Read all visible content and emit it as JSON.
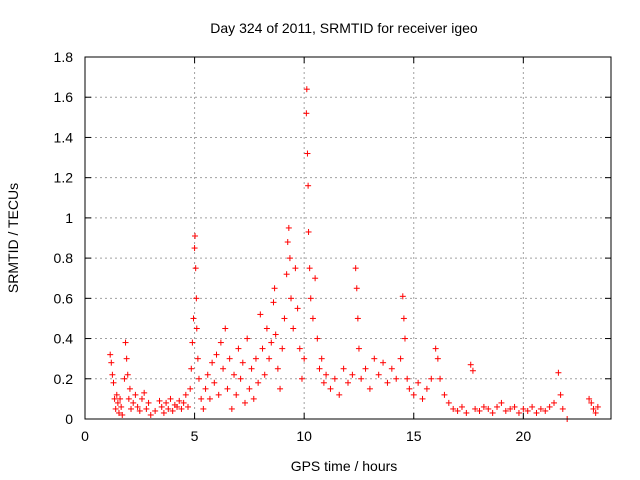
{
  "chart_data": {
    "type": "scatter",
    "title": "Day 324 of 2011, SRMTID for receiver igeo",
    "xlabel": "GPS time / hours",
    "ylabel": "SRMTID / TECUs",
    "xlim": [
      0,
      24
    ],
    "ylim": [
      0,
      1.8
    ],
    "x_ticks": [
      0,
      5,
      10,
      15,
      20
    ],
    "x_tick_labels": [
      "0",
      "5",
      "10",
      "15",
      "20"
    ],
    "y_ticks": [
      0,
      0.2,
      0.4,
      0.6,
      0.8,
      1.0,
      1.2,
      1.4,
      1.6,
      1.8
    ],
    "y_tick_labels": [
      "0",
      "0.2",
      "0.4",
      "0.6",
      "0.8",
      "1",
      "1.2",
      "1.4",
      "1.6",
      "1.8"
    ],
    "grid": true,
    "marker": "+",
    "marker_color": "#ff0000",
    "series": [
      {
        "points": [
          [
            1.15,
            0.32
          ],
          [
            1.2,
            0.28
          ],
          [
            1.25,
            0.22
          ],
          [
            1.3,
            0.18
          ],
          [
            1.35,
            0.1
          ],
          [
            1.4,
            0.05
          ],
          [
            1.45,
            0.12
          ],
          [
            1.5,
            0.08
          ],
          [
            1.55,
            0.03
          ],
          [
            1.6,
            0.1
          ],
          [
            1.65,
            0.06
          ],
          [
            1.7,
            0.02
          ],
          [
            1.8,
            0.2
          ],
          [
            1.85,
            0.38
          ],
          [
            1.9,
            0.3
          ],
          [
            1.95,
            0.22
          ],
          [
            2.0,
            0.1
          ],
          [
            2.05,
            0.15
          ],
          [
            2.1,
            0.05
          ],
          [
            2.2,
            0.08
          ],
          [
            2.3,
            0.12
          ],
          [
            2.4,
            0.06
          ],
          [
            2.5,
            0.04
          ],
          [
            2.6,
            0.1
          ],
          [
            2.7,
            0.13
          ],
          [
            2.8,
            0.05
          ],
          [
            2.9,
            0.08
          ],
          [
            3.0,
            0.02
          ],
          [
            3.2,
            0.04
          ],
          [
            3.4,
            0.09
          ],
          [
            3.5,
            0.06
          ],
          [
            3.6,
            0.03
          ],
          [
            3.7,
            0.08
          ],
          [
            3.8,
            0.05
          ],
          [
            3.9,
            0.1
          ],
          [
            4.0,
            0.04
          ],
          [
            4.1,
            0.07
          ],
          [
            4.2,
            0.06
          ],
          [
            4.3,
            0.09
          ],
          [
            4.4,
            0.05
          ],
          [
            4.5,
            0.08
          ],
          [
            4.6,
            0.12
          ],
          [
            4.7,
            0.06
          ],
          [
            4.8,
            0.15
          ],
          [
            4.85,
            0.25
          ],
          [
            4.9,
            0.38
          ],
          [
            4.95,
            0.5
          ],
          [
            5.0,
            0.85
          ],
          [
            5.02,
            0.91
          ],
          [
            5.05,
            0.75
          ],
          [
            5.08,
            0.6
          ],
          [
            5.1,
            0.45
          ],
          [
            5.15,
            0.3
          ],
          [
            5.2,
            0.2
          ],
          [
            5.3,
            0.1
          ],
          [
            5.4,
            0.05
          ],
          [
            5.5,
            0.15
          ],
          [
            5.6,
            0.22
          ],
          [
            5.7,
            0.1
          ],
          [
            5.8,
            0.28
          ],
          [
            5.9,
            0.18
          ],
          [
            6.0,
            0.32
          ],
          [
            6.1,
            0.12
          ],
          [
            6.2,
            0.38
          ],
          [
            6.3,
            0.25
          ],
          [
            6.4,
            0.45
          ],
          [
            6.5,
            0.15
          ],
          [
            6.6,
            0.3
          ],
          [
            6.7,
            0.05
          ],
          [
            6.8,
            0.22
          ],
          [
            6.9,
            0.12
          ],
          [
            7.0,
            0.35
          ],
          [
            7.1,
            0.2
          ],
          [
            7.2,
            0.28
          ],
          [
            7.3,
            0.08
          ],
          [
            7.4,
            0.4
          ],
          [
            7.5,
            0.15
          ],
          [
            7.6,
            0.25
          ],
          [
            7.7,
            0.1
          ],
          [
            7.8,
            0.3
          ],
          [
            7.9,
            0.18
          ],
          [
            8.0,
            0.52
          ],
          [
            8.1,
            0.35
          ],
          [
            8.2,
            0.22
          ],
          [
            8.3,
            0.45
          ],
          [
            8.4,
            0.3
          ],
          [
            8.5,
            0.38
          ],
          [
            8.6,
            0.58
          ],
          [
            8.65,
            0.65
          ],
          [
            8.7,
            0.42
          ],
          [
            8.8,
            0.25
          ],
          [
            8.9,
            0.15
          ],
          [
            9.0,
            0.35
          ],
          [
            9.1,
            0.5
          ],
          [
            9.2,
            0.72
          ],
          [
            9.25,
            0.88
          ],
          [
            9.3,
            0.95
          ],
          [
            9.35,
            0.8
          ],
          [
            9.4,
            0.6
          ],
          [
            9.5,
            0.45
          ],
          [
            9.6,
            0.75
          ],
          [
            9.7,
            0.55
          ],
          [
            9.8,
            0.35
          ],
          [
            9.9,
            0.2
          ],
          [
            10.0,
            0.3
          ],
          [
            10.1,
            1.52
          ],
          [
            10.12,
            1.64
          ],
          [
            10.15,
            1.32
          ],
          [
            10.18,
            1.16
          ],
          [
            10.2,
            0.93
          ],
          [
            10.25,
            0.75
          ],
          [
            10.3,
            0.6
          ],
          [
            10.4,
            0.5
          ],
          [
            10.5,
            0.7
          ],
          [
            10.6,
            0.4
          ],
          [
            10.7,
            0.25
          ],
          [
            10.8,
            0.3
          ],
          [
            10.9,
            0.18
          ],
          [
            11.0,
            0.22
          ],
          [
            11.2,
            0.15
          ],
          [
            11.4,
            0.2
          ],
          [
            11.6,
            0.12
          ],
          [
            11.8,
            0.25
          ],
          [
            12.0,
            0.18
          ],
          [
            12.2,
            0.22
          ],
          [
            12.35,
            0.75
          ],
          [
            12.4,
            0.65
          ],
          [
            12.45,
            0.5
          ],
          [
            12.5,
            0.35
          ],
          [
            12.6,
            0.2
          ],
          [
            12.8,
            0.25
          ],
          [
            13.0,
            0.15
          ],
          [
            13.2,
            0.3
          ],
          [
            13.4,
            0.22
          ],
          [
            13.6,
            0.28
          ],
          [
            13.8,
            0.18
          ],
          [
            14.0,
            0.25
          ],
          [
            14.2,
            0.2
          ],
          [
            14.4,
            0.3
          ],
          [
            14.5,
            0.61
          ],
          [
            14.55,
            0.5
          ],
          [
            14.6,
            0.4
          ],
          [
            14.7,
            0.2
          ],
          [
            14.8,
            0.15
          ],
          [
            15.0,
            0.12
          ],
          [
            15.2,
            0.18
          ],
          [
            15.4,
            0.1
          ],
          [
            15.6,
            0.15
          ],
          [
            15.8,
            0.2
          ],
          [
            16.0,
            0.35
          ],
          [
            16.1,
            0.3
          ],
          [
            16.2,
            0.2
          ],
          [
            16.4,
            0.12
          ],
          [
            16.6,
            0.08
          ],
          [
            16.8,
            0.05
          ],
          [
            17.0,
            0.04
          ],
          [
            17.2,
            0.06
          ],
          [
            17.4,
            0.03
          ],
          [
            17.6,
            0.27
          ],
          [
            17.7,
            0.24
          ],
          [
            17.8,
            0.05
          ],
          [
            18.0,
            0.04
          ],
          [
            18.2,
            0.06
          ],
          [
            18.4,
            0.05
          ],
          [
            18.6,
            0.03
          ],
          [
            18.8,
            0.06
          ],
          [
            19.0,
            0.08
          ],
          [
            19.2,
            0.04
          ],
          [
            19.4,
            0.05
          ],
          [
            19.6,
            0.06
          ],
          [
            19.8,
            0.03
          ],
          [
            20.0,
            0.05
          ],
          [
            20.2,
            0.04
          ],
          [
            20.4,
            0.06
          ],
          [
            20.6,
            0.03
          ],
          [
            20.8,
            0.05
          ],
          [
            21.0,
            0.04
          ],
          [
            21.2,
            0.06
          ],
          [
            21.4,
            0.08
          ],
          [
            21.6,
            0.23
          ],
          [
            21.7,
            0.12
          ],
          [
            21.8,
            0.05
          ],
          [
            22.0,
            0.0
          ],
          [
            23.0,
            0.1
          ],
          [
            23.1,
            0.08
          ],
          [
            23.2,
            0.05
          ],
          [
            23.3,
            0.03
          ],
          [
            23.4,
            0.06
          ]
        ]
      }
    ]
  }
}
